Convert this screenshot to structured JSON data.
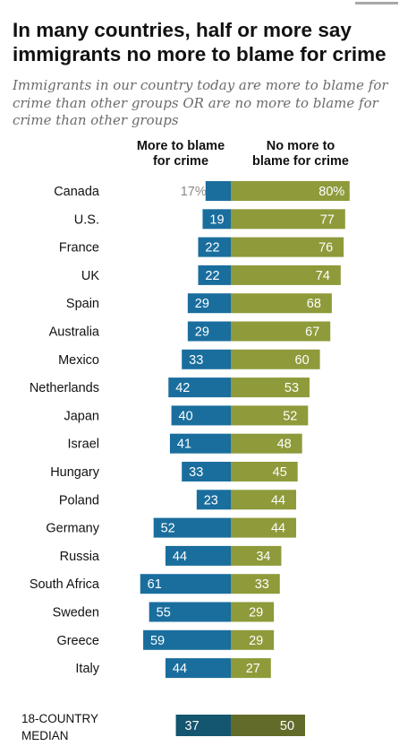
{
  "title": "In many countries, half or more say immigrants no more to blame for crime",
  "subtitle": "Immigrants in our country today are more to blame for crime than other groups OR are no more to blame for crime than other groups",
  "colors": {
    "more": "#1a6e9e",
    "no_more": "#8f9a3a",
    "median_more": "#14556f",
    "median_no_more": "#636b2a",
    "label": "#111111",
    "small_value": "#8a8a8a"
  },
  "chart_data": {
    "type": "bar",
    "series": [
      {
        "name": "More to blame for crime",
        "values": [
          17,
          19,
          22,
          22,
          29,
          29,
          33,
          42,
          40,
          41,
          33,
          23,
          52,
          44,
          61,
          55,
          59,
          44
        ]
      },
      {
        "name": "No more to blame for crime",
        "values": [
          80,
          77,
          76,
          74,
          68,
          67,
          60,
          53,
          52,
          48,
          45,
          44,
          44,
          34,
          33,
          29,
          29,
          27
        ]
      }
    ],
    "categories": [
      "Canada",
      "U.S.",
      "France",
      "UK",
      "Spain",
      "Australia",
      "Mexico",
      "Netherlands",
      "Japan",
      "Israel",
      "Hungary",
      "Poland",
      "Germany",
      "Russia",
      "South Africa",
      "Sweden",
      "Greece",
      "Italy"
    ],
    "value_labels_more": [
      "17%",
      "19",
      "22",
      "22",
      "29",
      "29",
      "33",
      "42",
      "40",
      "41",
      "33",
      "23",
      "52",
      "44",
      "61",
      "55",
      "59",
      "44"
    ],
    "value_labels_no_more": [
      "80%",
      "77",
      "76",
      "74",
      "68",
      "67",
      "60",
      "53",
      "52",
      "48",
      "45",
      "44",
      "44",
      "34",
      "33",
      "29",
      "29",
      "27"
    ],
    "median": {
      "label": "18-COUNTRY MEDIAN",
      "more": 37,
      "no_more": 50,
      "more_label": "37",
      "no_more_label": "50"
    },
    "column_headers": {
      "more": "More to blame\nfor crime",
      "no_more": "No more to\nblame for crime"
    }
  }
}
